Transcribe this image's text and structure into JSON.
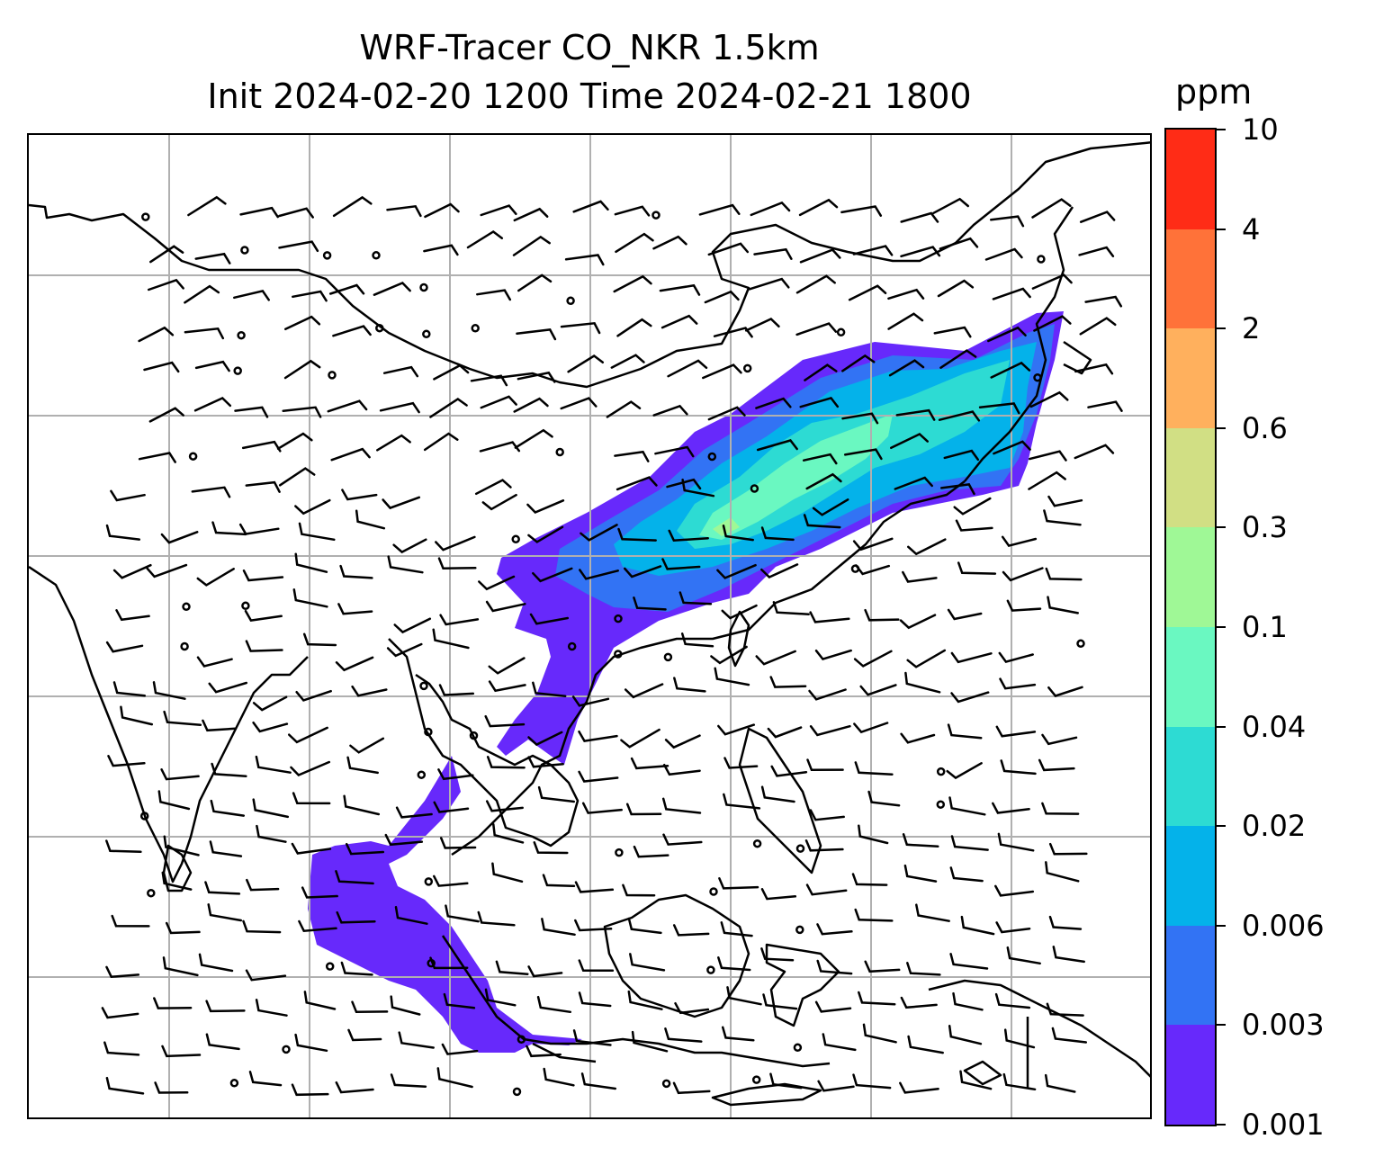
{
  "title": {
    "line1": "WRF-Tracer CO_NKR 1.5km",
    "line2": "Init 2024-02-20 1200 Time 2024-02-21 1800"
  },
  "colorbar": {
    "unit": "ppm",
    "levels": [
      "0.001",
      "0.003",
      "0.006",
      "0.02",
      "0.04",
      "0.1",
      "0.3",
      "0.6",
      "2",
      "4",
      "10"
    ],
    "colors": [
      "#6729fb",
      "#3273f4",
      "#04b2ea",
      "#2ddbd3",
      "#6af8c1",
      "#9ff896",
      "#d1df84",
      "#ffb05d",
      "#ff7239",
      "#ff2c16"
    ]
  },
  "map": {
    "gridlines": "on",
    "grid_color": "#b0b0b0",
    "coastline_color": "#000000",
    "wind_barbs": "on",
    "plume_extent": "Southern China to Japan, extending through Indochina to Sumatra"
  }
}
